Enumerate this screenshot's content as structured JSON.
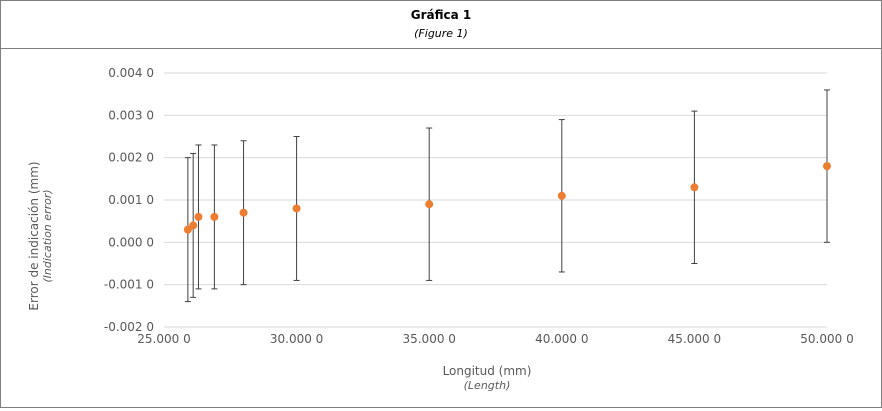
{
  "header": {
    "title": "Gráfica 1",
    "subtitle": "(Figure 1)"
  },
  "chart_data": {
    "type": "scatter",
    "title": "Gráfica 1",
    "subtitle": "(Figure 1)",
    "xlabel": "Longitud (mm)",
    "xlabel_sub": "(Length)",
    "ylabel": "Error de indicación (mm)",
    "ylabel_sub": "(Indication error)",
    "xlim": [
      25,
      50
    ],
    "ylim": [
      -0.002,
      0.004
    ],
    "x_ticks": [
      25,
      30,
      35,
      40,
      45,
      50
    ],
    "x_tick_labels": [
      "25.000 0",
      "30.000 0",
      "35.000 0",
      "40.000 0",
      "45.000 0",
      "50.000 0"
    ],
    "y_ticks": [
      -0.002,
      -0.001,
      0,
      0.001,
      0.002,
      0.003,
      0.004
    ],
    "y_tick_labels": [
      "-0.002 0",
      "-0.001 0",
      "0.000 0",
      "0.001 0",
      "0.002 0",
      "0.003 0",
      "0.004 0"
    ],
    "grid": true,
    "marker_color": "#ed7d31",
    "errorbar_color": "#404040",
    "points": [
      {
        "x": 25.9,
        "y": 0.0003,
        "err_low": -0.0014,
        "err_high": 0.002
      },
      {
        "x": 26.1,
        "y": 0.0004,
        "err_low": -0.0013,
        "err_high": 0.0021
      },
      {
        "x": 26.3,
        "y": 0.0006,
        "err_low": -0.0011,
        "err_high": 0.0023
      },
      {
        "x": 26.9,
        "y": 0.0006,
        "err_low": -0.0011,
        "err_high": 0.0023
      },
      {
        "x": 28.0,
        "y": 0.0007,
        "err_low": -0.001,
        "err_high": 0.0024
      },
      {
        "x": 30.0,
        "y": 0.0008,
        "err_low": -0.0009,
        "err_high": 0.0025
      },
      {
        "x": 35.0,
        "y": 0.0009,
        "err_low": -0.0009,
        "err_high": 0.0027
      },
      {
        "x": 40.0,
        "y": 0.0011,
        "err_low": -0.0007,
        "err_high": 0.0029
      },
      {
        "x": 45.0,
        "y": 0.0013,
        "err_low": -0.0005,
        "err_high": 0.0031
      },
      {
        "x": 50.0,
        "y": 0.0018,
        "err_low": 0.0,
        "err_high": 0.0036
      }
    ]
  }
}
